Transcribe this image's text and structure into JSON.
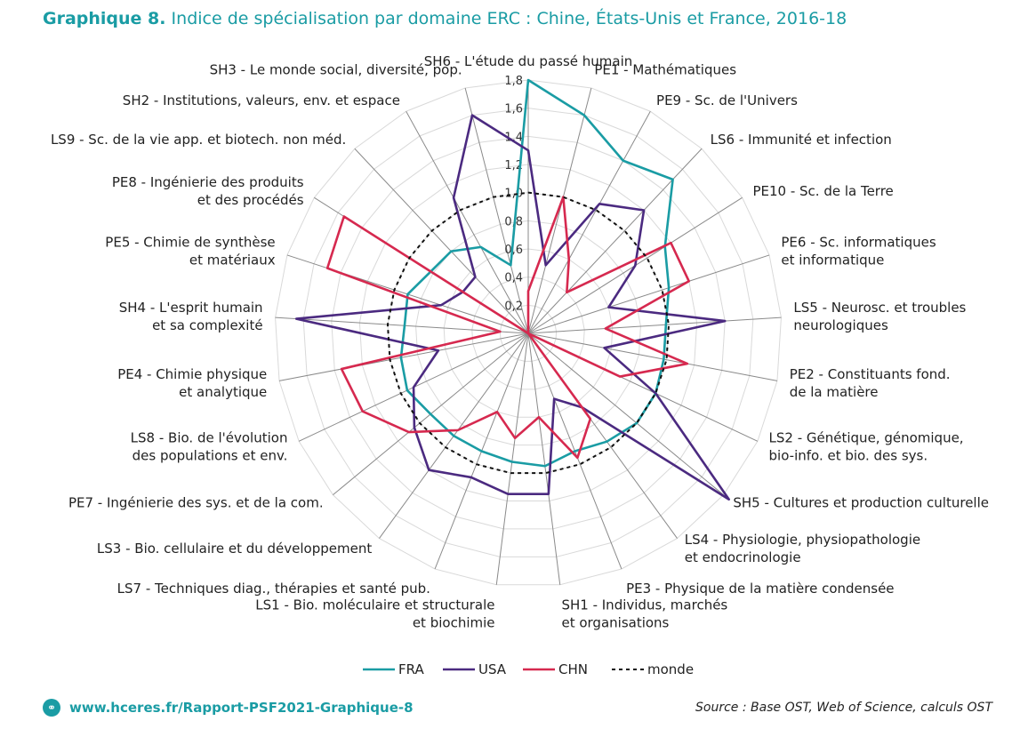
{
  "header": {
    "figure_label": "Graphique 8.",
    "title_text": "Indice de spécialisation par domaine ERC : Chine, États-Unis et France, 2016-18"
  },
  "footer": {
    "link_text": "www.hceres.fr/Rapport-PSF2021-Graphique-8",
    "source": "Source : Base OST, Web of Science, calculs OST"
  },
  "colors": {
    "title": "#1a9ca4",
    "FRA": "#1a9ca4",
    "USA": "#4b2a80",
    "CHN": "#d6294f",
    "monde": "#111111"
  },
  "chart_data": {
    "type": "radar",
    "title": "Indice de spécialisation par domaine ERC : Chine, États-Unis et France, 2016-18",
    "categories": [
      [
        "SH6 - L'étude du passé humain"
      ],
      [
        "PE1 - Mathématiques"
      ],
      [
        "PE9 - Sc. de l'Univers"
      ],
      [
        "LS6 - Immunité et infection"
      ],
      [
        "PE10 - Sc. de la Terre"
      ],
      [
        "PE6 - Sc. informatiques",
        "et informatique"
      ],
      [
        "LS5 - Neurosc. et troubles",
        "neurologiques"
      ],
      [
        "PE2 - Constituants fond.",
        "de la matière"
      ],
      [
        "LS2 - Génétique, génomique,",
        "bio-info. et bio. des sys."
      ],
      [
        "SH5 - Cultures et production culturelle"
      ],
      [
        "LS4 - Physiologie, physiopathologie",
        "et endocrinologie"
      ],
      [
        "PE3 - Physique de la matière condensée"
      ],
      [
        "SH1 - Individus, marchés",
        "et organisations"
      ],
      [
        "LS1 - Bio. moléculaire et structurale",
        "et biochimie"
      ],
      [
        "LS7 - Techniques diag., thérapies et santé pub."
      ],
      [
        "LS3 - Bio. cellulaire et du développement"
      ],
      [
        "PE7 - Ingénierie des sys. et de la com."
      ],
      [
        "LS8 - Bio. de l'évolution",
        "des populations et env."
      ],
      [
        "PE4 - Chimie physique",
        "et analytique"
      ],
      [
        "SH4 - L'esprit humain",
        "et sa complexité"
      ],
      [
        "PE5 - Chimie de synthèse",
        "et matériaux"
      ],
      [
        "PE8 - Ingénierie des produits",
        "et des procédés"
      ],
      [
        "LS9 - Sc. de la vie app. et biotech. non méd."
      ],
      [
        "SH2 - Institutions, valeurs, env. et espace"
      ],
      [
        "SH3 - Le monde social, diversité, pop."
      ]
    ],
    "rlim": [
      0,
      1.8
    ],
    "ticks": [
      "0,2",
      "0,4",
      "0,6",
      "0,8",
      "1,0",
      "1,2",
      "1,4",
      "1,6",
      "1,8"
    ],
    "tick_values": [
      0.2,
      0.4,
      0.6,
      0.8,
      1.0,
      1.2,
      1.4,
      1.6,
      1.8
    ],
    "series": [
      {
        "name": "FRA",
        "values": [
          1.8,
          1.6,
          1.4,
          1.5,
          1.15,
          1.05,
          0.98,
          0.98,
          1.0,
          1.0,
          0.95,
          0.9,
          0.95,
          0.92,
          0.9,
          0.9,
          0.9,
          0.95,
          0.92,
          0.88,
          0.9,
          0.82,
          0.8,
          0.7,
          0.5
        ]
      },
      {
        "name": "USA",
        "values": [
          1.3,
          0.5,
          1.05,
          1.2,
          0.9,
          0.6,
          1.4,
          0.55,
          1.0,
          1.85,
          0.65,
          0.5,
          1.15,
          1.15,
          1.1,
          1.2,
          1.05,
          0.9,
          0.65,
          1.65,
          0.65,
          0.55,
          0.55,
          1.1,
          1.6
        ]
      },
      {
        "name": "CHN",
        "values": [
          0.3,
          1.0,
          0.6,
          0.4,
          1.2,
          1.2,
          0.55,
          1.15,
          0.72,
          0.0,
          0.75,
          0.95,
          0.6,
          0.75,
          0.6,
          0.85,
          1.1,
          1.3,
          1.35,
          0.2,
          1.5,
          1.55,
          0.0,
          0.0,
          0.0
        ]
      },
      {
        "name": "monde",
        "values": [
          1.0,
          1.0,
          1.0,
          1.0,
          1.0,
          1.0,
          1.0,
          1.0,
          1.0,
          1.0,
          1.0,
          1.0,
          1.0,
          1.0,
          1.0,
          1.0,
          1.0,
          1.0,
          1.0,
          1.0,
          1.0,
          1.0,
          1.0,
          1.0,
          1.0
        ]
      }
    ],
    "legend": [
      "FRA",
      "USA",
      "CHN",
      "monde"
    ],
    "legend_position": "bottom",
    "grid": true
  }
}
